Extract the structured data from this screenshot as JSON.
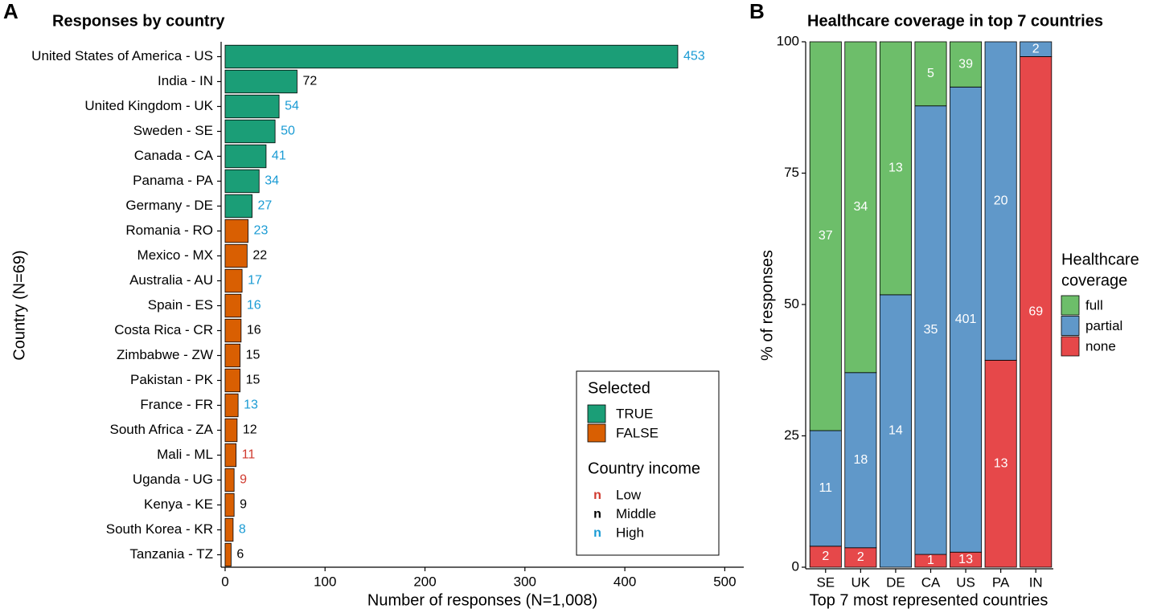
{
  "chart_data": [
    {
      "panel": "A",
      "type": "barh",
      "title": "Responses by country",
      "xlabel": "Number of responses (N=1,008)",
      "ylabel": "Country (N=69)",
      "categories": [
        "United States of America - US",
        "India - IN",
        "United Kingdom - UK",
        "Sweden - SE",
        "Canada - CA",
        "Panama - PA",
        "Germany - DE",
        "Romania - RO",
        "Mexico - MX",
        "Australia - AU",
        "Spain - ES",
        "Costa Rica - CR",
        "Zimbabwe - ZW",
        "Pakistan - PK",
        "France - FR",
        "South Africa - ZA",
        "Mali - ML",
        "Uganda - UG",
        "Kenya - KE",
        "South Korea - KR",
        "Tanzania - TZ"
      ],
      "values": [
        453,
        72,
        54,
        50,
        41,
        34,
        27,
        23,
        22,
        17,
        16,
        16,
        15,
        15,
        13,
        12,
        11,
        9,
        9,
        8,
        6
      ],
      "colors": [
        "#1b9e77",
        "#1b9e77",
        "#1b9e77",
        "#1b9e77",
        "#1b9e77",
        "#1b9e77",
        "#1b9e77",
        "#d95f02",
        "#d95f02",
        "#d95f02",
        "#d95f02",
        "#d95f02",
        "#d95f02",
        "#d95f02",
        "#d95f02",
        "#d95f02",
        "#d95f02",
        "#d95f02",
        "#d95f02",
        "#d95f02",
        "#d95f02"
      ],
      "label_colors": [
        "#1a9bd4",
        "#000000",
        "#1a9bd4",
        "#1a9bd4",
        "#1a9bd4",
        "#1a9bd4",
        "#1a9bd4",
        "#1a9bd4",
        "#000000",
        "#1a9bd4",
        "#1a9bd4",
        "#000000",
        "#000000",
        "#000000",
        "#1a9bd4",
        "#000000",
        "#d03a2f",
        "#d03a2f",
        "#000000",
        "#1a9bd4",
        "#000000"
      ],
      "xlim": [
        -4,
        519
      ],
      "xticks": [
        0,
        100,
        200,
        300,
        400,
        500
      ],
      "legend_position": "lower right",
      "legend": {
        "title": "Selected",
        "items": [
          {
            "label": "TRUE",
            "color": "#1b9e77"
          },
          {
            "label": "FALSE",
            "color": "#d95f02"
          }
        ]
      },
      "legend2": {
        "title": "Country income",
        "items": [
          {
            "symbol": "n",
            "label": "Low",
            "color": "#d03a2f"
          },
          {
            "symbol": "n",
            "label": "Middle",
            "color": "#000000"
          },
          {
            "symbol": "n",
            "label": "High",
            "color": "#1a9bd4"
          }
        ]
      }
    },
    {
      "panel": "B",
      "type": "stacked_bar_percent",
      "title": "Healthcare coverage in top 7 countries",
      "xlabel": "Top 7 most represented countries",
      "ylabel": "% of responses",
      "categories": [
        "SE",
        "UK",
        "DE",
        "CA",
        "US",
        "PA",
        "IN"
      ],
      "series": [
        {
          "name": "full",
          "color": "#6dbe6a",
          "values": [
            37,
            34,
            13,
            5,
            39,
            null,
            null
          ]
        },
        {
          "name": "partial",
          "color": "#6098c9",
          "values": [
            11,
            18,
            14,
            35,
            401,
            20,
            2
          ]
        },
        {
          "name": "none",
          "color": "#e6484a",
          "values": [
            2,
            2,
            null,
            1,
            13,
            13,
            69
          ]
        }
      ],
      "ylim": [
        0,
        100
      ],
      "yticks": [
        0,
        25,
        50,
        75,
        100
      ],
      "legend_position": "right",
      "legend_title": [
        "Healthcare",
        "coverage"
      ]
    }
  ]
}
